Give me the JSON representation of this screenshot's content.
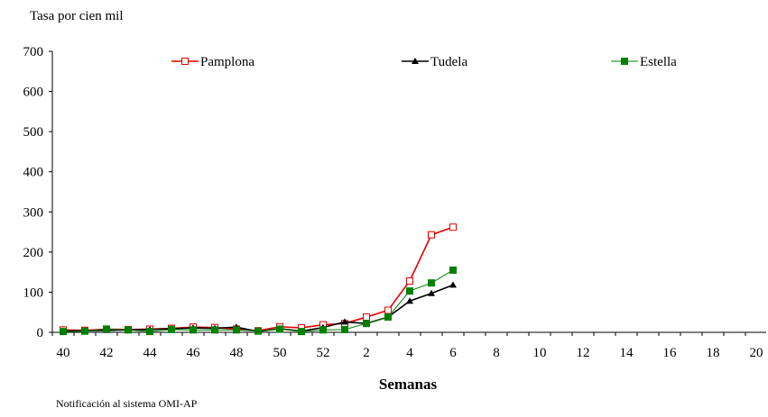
{
  "chart_data": {
    "type": "line",
    "ylabel": "Tasa por cien mil",
    "xlabel": "Semanas",
    "note": "Notificación al sistema OMI-AP",
    "categories": [
      "40",
      null,
      "42",
      null,
      "44",
      null,
      "46",
      null,
      "48",
      null,
      "50",
      null,
      "52",
      null,
      "2",
      null,
      "4",
      null,
      "6",
      null,
      "8",
      null,
      "10",
      null,
      "12",
      null,
      "14",
      null,
      "16",
      null,
      "18",
      null,
      "20"
    ],
    "ylim": [
      0,
      700
    ],
    "yticks": [
      0,
      100,
      200,
      300,
      400,
      500,
      600,
      700
    ],
    "legend": "top",
    "series": [
      {
        "name": "Pamplona",
        "color": "#e00000",
        "marker": "open-square",
        "values": [
          6,
          5,
          8,
          7,
          8,
          10,
          13,
          12,
          8,
          4,
          14,
          11,
          19,
          22,
          38,
          55,
          128,
          243,
          262,
          null,
          null,
          null,
          null,
          null,
          null,
          null,
          null,
          null,
          null,
          null,
          null,
          null,
          null
        ]
      },
      {
        "name": "Tudela",
        "color": "#000000",
        "marker": "triangle",
        "values": [
          3,
          4,
          5,
          6,
          7,
          9,
          11,
          10,
          13,
          2,
          9,
          3,
          12,
          26,
          22,
          38,
          78,
          97,
          118,
          null,
          null,
          null,
          null,
          null,
          null,
          null,
          null,
          null,
          null,
          null,
          null,
          null,
          null
        ]
      },
      {
        "name": "Estella",
        "color": "#008000",
        "marker": "square",
        "values": [
          2,
          3,
          8,
          6,
          2,
          7,
          6,
          6,
          6,
          3,
          8,
          2,
          6,
          7,
          22,
          38,
          103,
          123,
          155,
          null,
          null,
          null,
          null,
          null,
          null,
          null,
          null,
          null,
          null,
          null,
          null,
          null,
          null
        ]
      }
    ]
  }
}
